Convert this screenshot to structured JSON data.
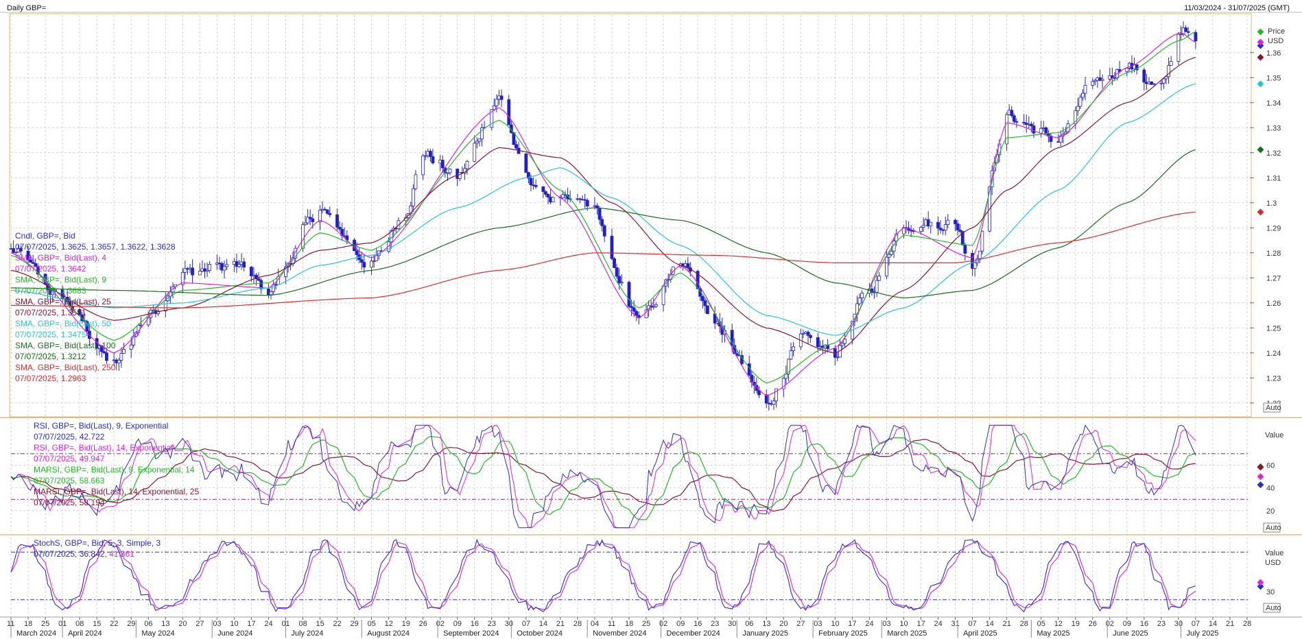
{
  "header": {
    "title": "Daily GBP=",
    "range": "11/03/2024 - 31/07/2025 (GMT)"
  },
  "price_legend": [
    {
      "name": "Cndl, GBP=, Bid",
      "value": "07/07/2025, 1.3625, 1.3657, 1.3622, 1.3628",
      "color": "#2b2bd6"
    },
    {
      "name": "SMA, GBP=, Bid(Last), 4",
      "value": "07/07/2025, 1.3642",
      "color": "#e020e0"
    },
    {
      "name": "SMA, GBP=, Bid(Last), 9",
      "value": "07/07/2025, 1.3683",
      "color": "#22bb22"
    },
    {
      "name": "SMA, GBP=, Bid(Last), 25",
      "value": "07/07/2025, 1.3581",
      "color": "#8b1530"
    },
    {
      "name": "SMA, GBP=, Bid(Last), 50",
      "value": "07/07/2025, 1.3475",
      "color": "#22c8d8"
    },
    {
      "name": "SMA, GBP=, Bid(Last), 100",
      "value": "07/07/2025, 1.3212",
      "color": "#167016"
    },
    {
      "name": "SMA, GBP=, Bid(Last), 250",
      "value": "07/07/2025, 1.2963",
      "color": "#e02a2a"
    }
  ],
  "rsi_legend": [
    {
      "name": "RSI, GBP=, Bid(Last), 9, Exponential",
      "value": "07/07/2025, 42.722",
      "color": "#2b2bd6"
    },
    {
      "name": "RSI, GBP=, Bid(Last), 14, Exponential",
      "value": "07/07/2025, 49.947",
      "color": "#e020e0"
    },
    {
      "name": "MARSI, GBP=, Bid(Last), 9, Exponential, 14",
      "value": "07/07/2025, 58.663",
      "color": "#22bb22"
    },
    {
      "name": "MARSI, GBP=, Bid(Last), 14, Exponential, 25",
      "value": "07/07/2025, 58.194",
      "color": "#8b1530"
    }
  ],
  "stoch_legend": [
    {
      "name": "StochS, GBP=, Bid, 5, 3, Simple, 3",
      "value_a": "07/07/2025, 36.842,",
      "value_b": "41.861",
      "color_a": "#2b2bd6",
      "color_b": "#e020e0"
    }
  ],
  "axes": {
    "price_label": "Price",
    "price_unit": "USD",
    "price_ticks": [
      "1.36",
      "1.35",
      "1.34",
      "1.33",
      "1.32",
      "1.31",
      "1.3",
      "1.29",
      "1.28",
      "1.27",
      "1.26",
      "1.25",
      "1.24",
      "1.23",
      "1.22"
    ],
    "rsi_label": "Value",
    "rsi_ticks": [
      "60",
      "40",
      "20"
    ],
    "stoch_label": "Value",
    "stoch_unit": "USD",
    "stoch_ticks": [
      "30"
    ],
    "auto": "Auto",
    "day_ticks": [
      "11",
      "18",
      "25",
      "01",
      "08",
      "15",
      "22",
      "29",
      "06",
      "13",
      "20",
      "27",
      "03",
      "10",
      "17",
      "24",
      "01",
      "08",
      "15",
      "22",
      "29",
      "05",
      "12",
      "19",
      "26",
      "02",
      "09",
      "16",
      "23",
      "30",
      "07",
      "14",
      "21",
      "28",
      "04",
      "11",
      "18",
      "25",
      "02",
      "09",
      "16",
      "23",
      "30",
      "06",
      "13",
      "20",
      "27",
      "03",
      "10",
      "17",
      "24",
      "03",
      "10",
      "17",
      "24",
      "31",
      "07",
      "14",
      "21",
      "28",
      "05",
      "12",
      "19",
      "26",
      "02",
      "09",
      "16",
      "23",
      "30",
      "07",
      "14",
      "21",
      "28"
    ],
    "months": [
      "March 2024",
      "April 2024",
      "May 2024",
      "June 2024",
      "July 2024",
      "August 2024",
      "September 2024",
      "October 2024",
      "November 2024",
      "December 2024",
      "January 2025",
      "February 2025",
      "March 2025",
      "April 2025",
      "May 2025",
      "June 2025",
      "July 2025"
    ]
  },
  "chart_data": {
    "type": "line",
    "title": "Daily GBP=",
    "x_start": "2024-03-11",
    "x_end": "2025-07-28",
    "price_ylim": [
      1.215,
      1.375
    ],
    "price_keypoints": [
      [
        "2024-03-11",
        1.281
      ],
      [
        "2024-04-01",
        1.262
      ],
      [
        "2024-04-22",
        1.235
      ],
      [
        "2024-05-06",
        1.255
      ],
      [
        "2024-05-20",
        1.272
      ],
      [
        "2024-06-10",
        1.275
      ],
      [
        "2024-06-24",
        1.265
      ],
      [
        "2024-07-15",
        1.297
      ],
      [
        "2024-08-05",
        1.275
      ],
      [
        "2024-08-19",
        1.297
      ],
      [
        "2024-08-26",
        1.32
      ],
      [
        "2024-09-09",
        1.31
      ],
      [
        "2024-09-26",
        1.342
      ],
      [
        "2024-10-07",
        1.31
      ],
      [
        "2024-10-21",
        1.3
      ],
      [
        "2024-11-04",
        1.3
      ],
      [
        "2024-11-11",
        1.275
      ],
      [
        "2024-11-22",
        1.252
      ],
      [
        "2024-12-09",
        1.278
      ],
      [
        "2024-12-23",
        1.252
      ],
      [
        "2025-01-13",
        1.22
      ],
      [
        "2025-01-27",
        1.245
      ],
      [
        "2025-02-10",
        1.24
      ],
      [
        "2025-02-24",
        1.265
      ],
      [
        "2025-03-10",
        1.292
      ],
      [
        "2025-03-31",
        1.292
      ],
      [
        "2025-04-07",
        1.275
      ],
      [
        "2025-04-21",
        1.335
      ],
      [
        "2025-05-12",
        1.325
      ],
      [
        "2025-05-26",
        1.348
      ],
      [
        "2025-06-09",
        1.355
      ],
      [
        "2025-06-23",
        1.345
      ],
      [
        "2025-07-01",
        1.37
      ],
      [
        "2025-07-07",
        1.363
      ]
    ],
    "sma_keypoints": {
      "SMA 4": [
        [
          "2024-03-11",
          1.28
        ],
        [
          "2024-04-22",
          1.24
        ],
        [
          "2024-05-20",
          1.268
        ],
        [
          "2024-06-24",
          1.266
        ],
        [
          "2024-07-15",
          1.293
        ],
        [
          "2024-08-05",
          1.278
        ],
        [
          "2024-09-26",
          1.338
        ],
        [
          "2024-10-21",
          1.302
        ],
        [
          "2024-11-22",
          1.254
        ],
        [
          "2024-12-09",
          1.275
        ],
        [
          "2025-01-13",
          1.223
        ],
        [
          "2025-02-10",
          1.242
        ],
        [
          "2025-03-10",
          1.29
        ],
        [
          "2025-04-07",
          1.278
        ],
        [
          "2025-04-21",
          1.332
        ],
        [
          "2025-05-12",
          1.326
        ],
        [
          "2025-06-09",
          1.354
        ],
        [
          "2025-07-01",
          1.368
        ],
        [
          "2025-07-07",
          1.3642
        ]
      ],
      "SMA 9": [
        [
          "2024-03-11",
          1.279
        ],
        [
          "2024-04-22",
          1.245
        ],
        [
          "2024-05-20",
          1.265
        ],
        [
          "2024-06-24",
          1.268
        ],
        [
          "2024-07-15",
          1.288
        ],
        [
          "2024-08-05",
          1.281
        ],
        [
          "2024-09-26",
          1.333
        ],
        [
          "2024-10-21",
          1.305
        ],
        [
          "2024-11-22",
          1.258
        ],
        [
          "2024-12-09",
          1.272
        ],
        [
          "2025-01-13",
          1.228
        ],
        [
          "2025-02-10",
          1.244
        ],
        [
          "2025-03-10",
          1.287
        ],
        [
          "2025-04-07",
          1.283
        ],
        [
          "2025-04-21",
          1.326
        ],
        [
          "2025-05-12",
          1.328
        ],
        [
          "2025-06-09",
          1.352
        ],
        [
          "2025-07-01",
          1.365
        ],
        [
          "2025-07-07",
          1.3683
        ]
      ],
      "SMA 25": [
        [
          "2024-03-11",
          1.273
        ],
        [
          "2024-04-22",
          1.253
        ],
        [
          "2024-05-20",
          1.258
        ],
        [
          "2024-06-24",
          1.271
        ],
        [
          "2024-07-15",
          1.281
        ],
        [
          "2024-08-05",
          1.284
        ],
        [
          "2024-09-09",
          1.311
        ],
        [
          "2024-09-26",
          1.322
        ],
        [
          "2024-10-21",
          1.318
        ],
        [
          "2024-11-11",
          1.3
        ],
        [
          "2024-12-09",
          1.275
        ],
        [
          "2025-01-13",
          1.25
        ],
        [
          "2025-02-10",
          1.24
        ],
        [
          "2025-03-10",
          1.265
        ],
        [
          "2025-04-07",
          1.29
        ],
        [
          "2025-04-21",
          1.305
        ],
        [
          "2025-05-12",
          1.322
        ],
        [
          "2025-06-09",
          1.34
        ],
        [
          "2025-07-07",
          1.3581
        ]
      ],
      "SMA 50": [
        [
          "2024-03-11",
          1.265
        ],
        [
          "2024-04-22",
          1.258
        ],
        [
          "2024-05-20",
          1.26
        ],
        [
          "2024-06-24",
          1.266
        ],
        [
          "2024-07-15",
          1.275
        ],
        [
          "2024-08-05",
          1.279
        ],
        [
          "2024-09-09",
          1.298
        ],
        [
          "2024-10-07",
          1.31
        ],
        [
          "2024-10-21",
          1.314
        ],
        [
          "2024-11-11",
          1.302
        ],
        [
          "2024-12-09",
          1.283
        ],
        [
          "2025-01-13",
          1.255
        ],
        [
          "2025-02-10",
          1.247
        ],
        [
          "2025-03-10",
          1.258
        ],
        [
          "2025-04-07",
          1.276
        ],
        [
          "2025-05-12",
          1.305
        ],
        [
          "2025-06-09",
          1.332
        ],
        [
          "2025-07-07",
          1.3475
        ]
      ],
      "SMA 100": [
        [
          "2024-03-11",
          1.266
        ],
        [
          "2024-04-22",
          1.265
        ],
        [
          "2024-06-24",
          1.263
        ],
        [
          "2024-08-05",
          1.273
        ],
        [
          "2024-09-26",
          1.29
        ],
        [
          "2024-11-04",
          1.298
        ],
        [
          "2024-12-09",
          1.293
        ],
        [
          "2025-01-13",
          1.28
        ],
        [
          "2025-02-10",
          1.268
        ],
        [
          "2025-03-10",
          1.262
        ],
        [
          "2025-04-07",
          1.265
        ],
        [
          "2025-05-12",
          1.282
        ],
        [
          "2025-06-09",
          1.3
        ],
        [
          "2025-07-07",
          1.3212
        ]
      ],
      "SMA 250": [
        [
          "2024-03-11",
          1.259
        ],
        [
          "2024-05-20",
          1.258
        ],
        [
          "2024-08-05",
          1.262
        ],
        [
          "2024-09-26",
          1.273
        ],
        [
          "2024-11-04",
          1.28
        ],
        [
          "2024-12-23",
          1.279
        ],
        [
          "2025-02-10",
          1.276
        ],
        [
          "2025-03-31",
          1.276
        ],
        [
          "2025-05-12",
          1.284
        ],
        [
          "2025-07-07",
          1.2963
        ]
      ]
    },
    "rsi_ylim": [
      0,
      100
    ],
    "rsi_levels": [
      70,
      30
    ],
    "rsi_last": {
      "RSI 9": 42.722,
      "RSI 14": 49.947,
      "MARSI 9": 58.663,
      "MARSI 14": 58.194
    },
    "stoch_ylim": [
      0,
      100
    ],
    "stoch_levels": [
      80,
      20
    ],
    "stoch_last": {
      "K": 36.842,
      "D": 41.861
    }
  }
}
